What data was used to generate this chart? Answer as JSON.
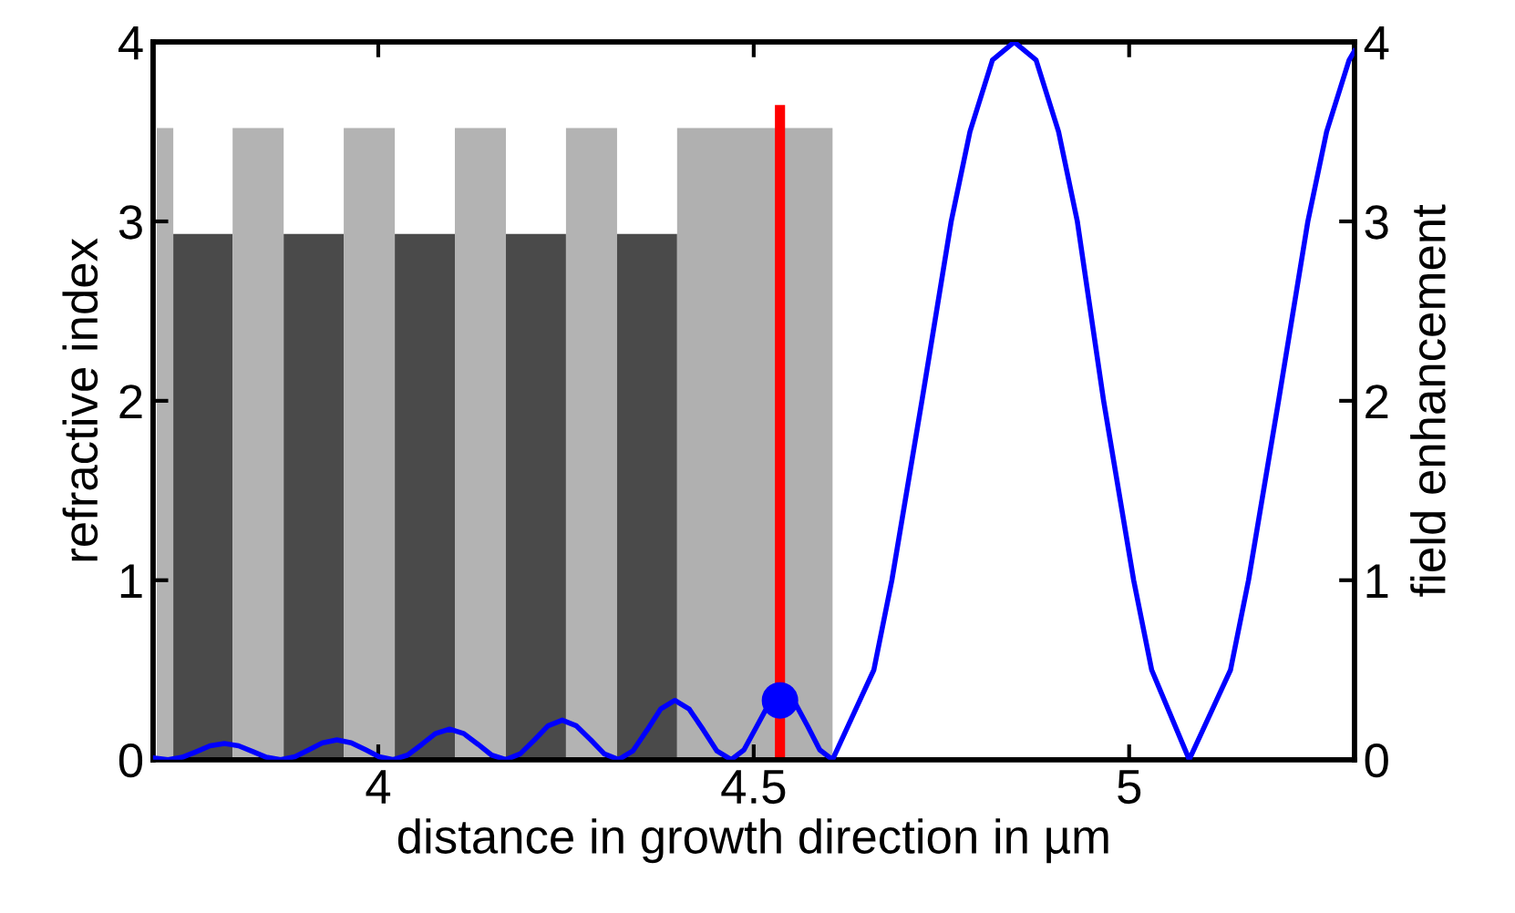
{
  "chart_data": {
    "type": "line",
    "xlabel": "distance in growth direction in µm",
    "ylabel": "refractive index",
    "y2label": "field enhancement",
    "xlim": [
      3.7,
      5.3
    ],
    "xticks": [
      4,
      4.5,
      5
    ],
    "ylim": [
      0,
      4
    ],
    "yticks": [
      0,
      1,
      2,
      3,
      4
    ],
    "y2lim": [
      0,
      4
    ],
    "y2ticks": [
      0,
      1,
      2,
      3,
      4
    ],
    "grid": false,
    "legend": false,
    "series": [
      {
        "type": "histogram",
        "bins": [
          3.705,
          3.727,
          3.806,
          3.874,
          3.954,
          4.022,
          4.102,
          4.17,
          4.25,
          4.318,
          4.398,
          4.605
        ],
        "values": [
          3.52,
          2.93,
          3.52,
          2.93,
          3.52,
          2.93,
          3.52,
          2.93,
          3.52,
          2.93,
          3.52
        ],
        "colors": [
          "#b3b3b3",
          "#4a4a4a",
          "#b3b3b3",
          "#4a4a4a",
          "#b3b3b3",
          "#4a4a4a",
          "#b3b3b3",
          "#4a4a4a",
          "#b3b3b3",
          "#4a4a4a",
          "#b0b0b0"
        ]
      },
      {
        "axis": "y2",
        "color": "#0000ff",
        "x": [
          3.7,
          3.72,
          3.739,
          3.758,
          3.776,
          3.795,
          3.814,
          3.833,
          3.851,
          3.87,
          3.889,
          3.908,
          3.926,
          3.945,
          3.964,
          3.983,
          4.001,
          4.02,
          4.039,
          4.058,
          4.076,
          4.095,
          4.114,
          4.133,
          4.151,
          4.17,
          4.189,
          4.208,
          4.226,
          4.245,
          4.264,
          4.283,
          4.301,
          4.32,
          4.339,
          4.358,
          4.376,
          4.395,
          4.414,
          4.433,
          4.451,
          4.47,
          4.487,
          4.504,
          4.521,
          4.538,
          4.555,
          4.572,
          4.588,
          4.605,
          4.66,
          4.684,
          4.724,
          4.763,
          4.788,
          4.818,
          4.847,
          4.876,
          4.906,
          4.931,
          4.966,
          5.006,
          5.03,
          5.08,
          5.135,
          5.159,
          5.199,
          5.238,
          5.263,
          5.293,
          5.3
        ],
        "values": [
          0.01,
          0,
          0.013,
          0.045,
          0.077,
          0.09,
          0.077,
          0.045,
          0.013,
          0,
          0.016,
          0.055,
          0.094,
          0.11,
          0.094,
          0.055,
          0.016,
          0,
          0.025,
          0.085,
          0.145,
          0.17,
          0.145,
          0.085,
          0.025,
          0,
          0.032,
          0.11,
          0.188,
          0.22,
          0.188,
          0.11,
          0.032,
          0,
          0.048,
          0.165,
          0.282,
          0.33,
          0.282,
          0.165,
          0.048,
          0,
          0.054,
          0.185,
          0.316,
          0.37,
          0.316,
          0.185,
          0.054,
          0,
          0.5,
          1,
          2,
          3,
          3.5,
          3.9,
          4,
          3.9,
          3.5,
          3,
          2,
          1,
          0.5,
          0,
          0.5,
          1,
          2,
          3,
          3.5,
          3.9,
          3.95
        ]
      },
      {
        "color": "#ff0000",
        "x": [
          4.535,
          4.535
        ],
        "values": [
          0,
          3.62
        ]
      },
      {
        "type": "scatter",
        "axis": "y2",
        "color": "#0000ff",
        "marker": "circle",
        "x": [
          4.535
        ],
        "values": [
          0.33
        ]
      }
    ]
  }
}
